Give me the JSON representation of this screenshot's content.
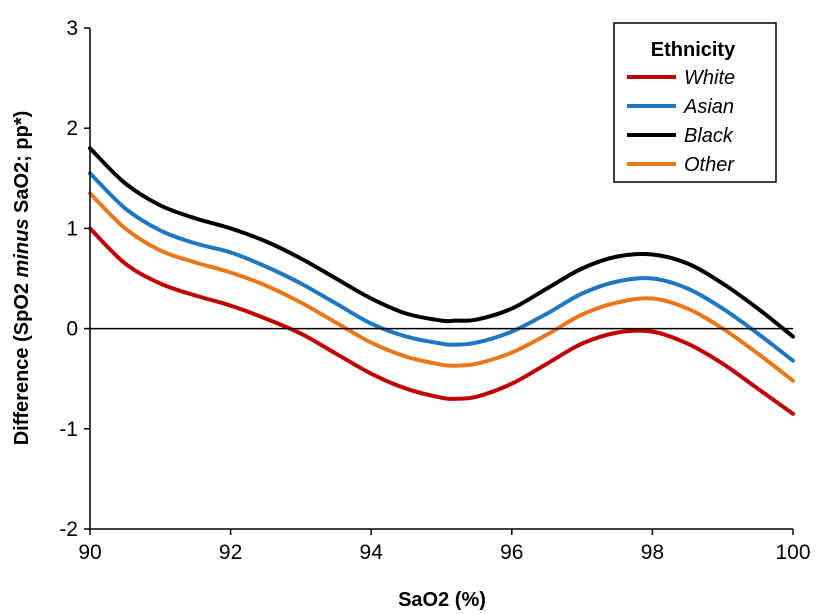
{
  "chart_data": {
    "type": "line",
    "xlabel": "SaO2 (%)",
    "ylabel_parts": [
      "Difference (SpO2 ",
      "minus",
      " SaO2; pp*)"
    ],
    "xlim": [
      90,
      100
    ],
    "ylim": [
      -2,
      3
    ],
    "x_ticks": [
      "90",
      "92",
      "94",
      "96",
      "98",
      "100"
    ],
    "y_ticks": [
      "-2",
      "-1",
      "0",
      "1",
      "2",
      "3"
    ],
    "reference_line_y": 0,
    "grid": false,
    "legend": {
      "title": "Ethnicity",
      "position": "top-right"
    },
    "x": [
      90,
      90.5,
      91,
      91.5,
      92,
      92.5,
      93,
      93.5,
      94,
      94.5,
      95,
      95.2,
      95.5,
      96,
      96.5,
      97,
      97.5,
      98,
      98.5,
      99,
      99.5,
      100
    ],
    "series": [
      {
        "name": "White",
        "color": "#c00000",
        "values": [
          1.0,
          0.65,
          0.45,
          0.33,
          0.23,
          0.1,
          -0.05,
          -0.25,
          -0.45,
          -0.6,
          -0.69,
          -0.7,
          -0.68,
          -0.55,
          -0.35,
          -0.15,
          -0.04,
          -0.03,
          -0.15,
          -0.35,
          -0.6,
          -0.85
        ]
      },
      {
        "name": "Asian",
        "color": "#1f77c0",
        "values": [
          1.55,
          1.2,
          0.98,
          0.85,
          0.76,
          0.62,
          0.45,
          0.25,
          0.05,
          -0.08,
          -0.15,
          -0.16,
          -0.14,
          -0.03,
          0.15,
          0.35,
          0.47,
          0.5,
          0.4,
          0.2,
          -0.05,
          -0.32
        ]
      },
      {
        "name": "Black",
        "color": "#000000",
        "values": [
          1.8,
          1.45,
          1.23,
          1.1,
          1.0,
          0.87,
          0.7,
          0.5,
          0.3,
          0.15,
          0.08,
          0.08,
          0.09,
          0.2,
          0.4,
          0.6,
          0.72,
          0.74,
          0.65,
          0.45,
          0.2,
          -0.08
        ]
      },
      {
        "name": "Other",
        "color": "#e8761a",
        "values": [
          1.35,
          1.0,
          0.78,
          0.66,
          0.56,
          0.43,
          0.26,
          0.06,
          -0.14,
          -0.28,
          -0.36,
          -0.37,
          -0.35,
          -0.24,
          -0.06,
          0.14,
          0.26,
          0.3,
          0.2,
          0.0,
          -0.25,
          -0.52
        ]
      }
    ]
  }
}
